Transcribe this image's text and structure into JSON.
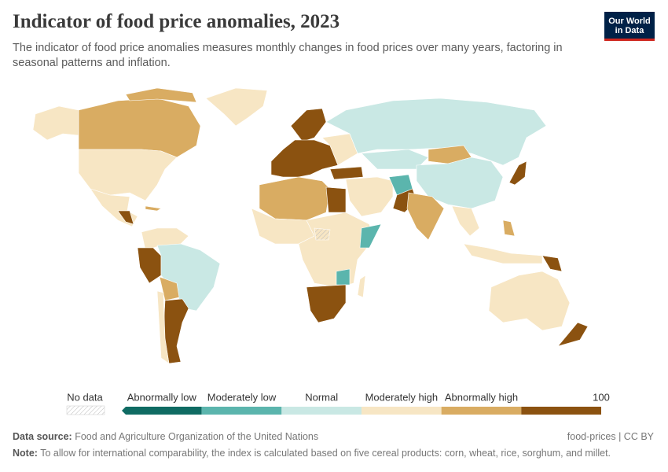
{
  "header": {
    "title": "Indicator of food price anomalies, 2023",
    "subtitle": "The indicator of food price anomalies measures monthly changes in food prices over many years, factoring in seasonal patterns and inflation.",
    "logo": [
      "Our World",
      "in Data"
    ]
  },
  "legend": {
    "no_data": "No data",
    "bins": [
      {
        "label": "Abnormally low",
        "color": "#0f6b63"
      },
      {
        "label": "Moderately low",
        "color": "#5bb5ad"
      },
      {
        "label": "Normal",
        "color": "#c9e8e4"
      },
      {
        "label": "Moderately high",
        "color": "#f7e6c4"
      },
      {
        "label": "Abnormally high",
        "color": "#d9ac62"
      },
      {
        "label": null,
        "color": "#8b5210"
      }
    ],
    "max": 100
  },
  "footer": {
    "source_label": "Data source:",
    "source": "Food and Agriculture Organization of the United Nations",
    "slug": "food-prices | CC BY",
    "note_label": "Note:",
    "note": "To allow for international comparability, the index is calculated based on five cereal products: corn, wheat, rice, sorghum, and millet."
  }
}
